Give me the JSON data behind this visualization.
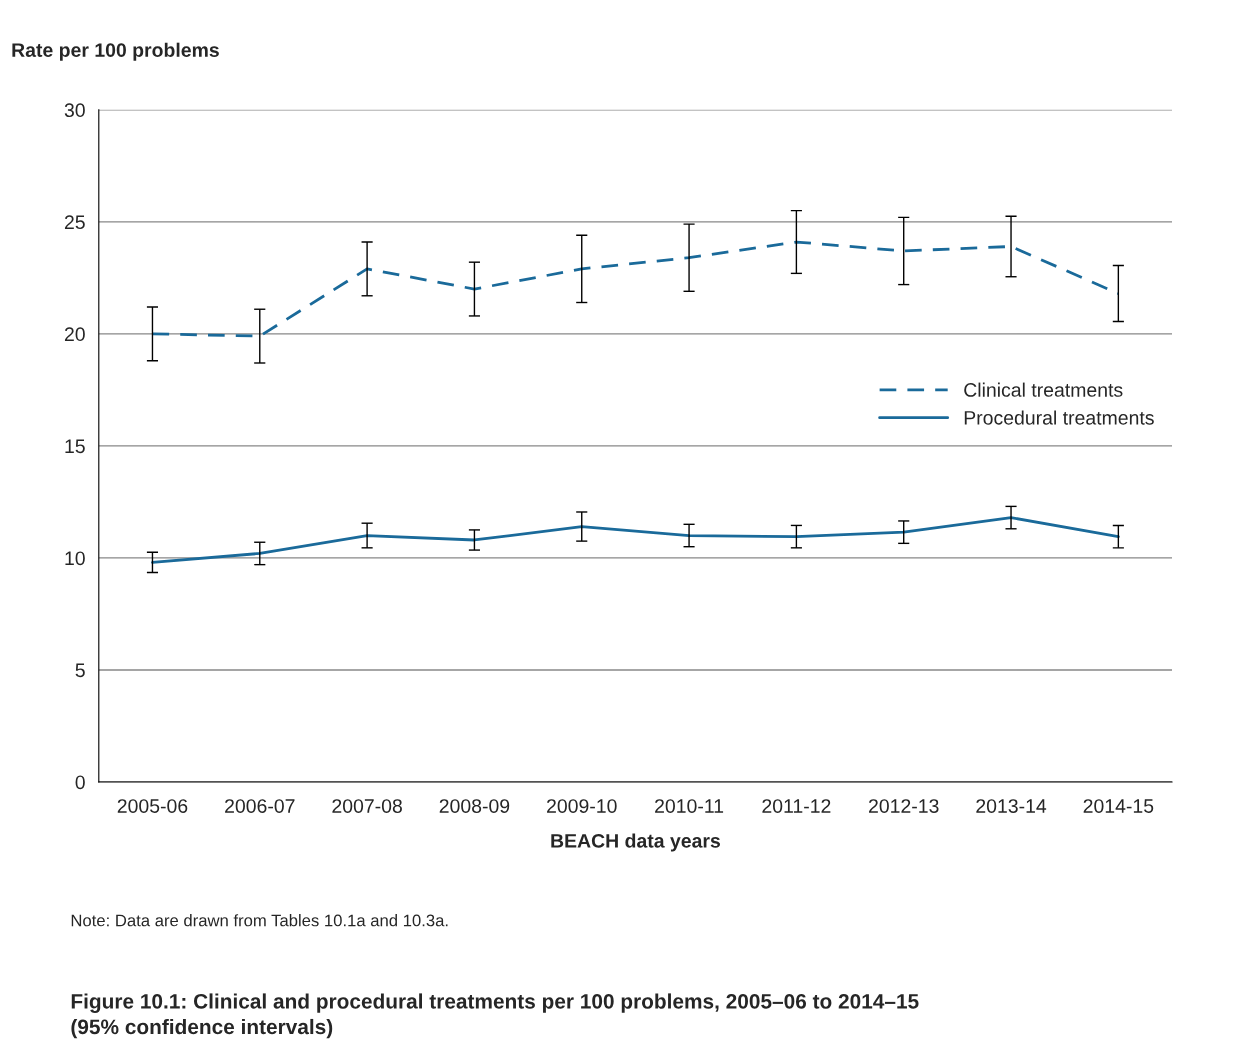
{
  "chart_data": {
    "type": "line",
    "title": "Figure 10.1: Clinical and procedural treatments per 100 problems, 2005–06 to 2014–15\n(95% confidence intervals)",
    "ylabel": "Rate per 100 problems",
    "xlabel": "BEACH data years",
    "categories": [
      "2005-06",
      "2006-07",
      "2007-08",
      "2008-09",
      "2009-10",
      "2010-11",
      "2011-12",
      "2012-13",
      "2013-14",
      "2014-15"
    ],
    "series": [
      {
        "name": "Clinical treatments",
        "color": "#1a6a9a",
        "line_style": "dashed",
        "values": [
          20.0,
          19.9,
          22.9,
          22.0,
          22.9,
          23.4,
          24.1,
          23.7,
          23.9,
          21.8
        ],
        "errors": [
          1.2,
          1.2,
          1.2,
          1.2,
          1.5,
          1.5,
          1.4,
          1.5,
          1.35,
          1.25
        ]
      },
      {
        "name": "Procedural treatments",
        "color": "#1a6a9a",
        "line_style": "solid",
        "values": [
          9.8,
          10.2,
          11.0,
          10.8,
          11.4,
          11.0,
          10.95,
          11.15,
          11.8,
          10.95
        ],
        "errors": [
          0.45,
          0.5,
          0.55,
          0.45,
          0.65,
          0.5,
          0.5,
          0.5,
          0.5,
          0.5
        ]
      }
    ],
    "ylim": [
      0,
      30
    ],
    "yticks": [
      0,
      5,
      10,
      15,
      20,
      25,
      30
    ],
    "grid": "y",
    "legend": "right",
    "marker": "none",
    "annotations": [
      "Note: Data are drawn from Tables 10.1a and 10.3a."
    ]
  }
}
